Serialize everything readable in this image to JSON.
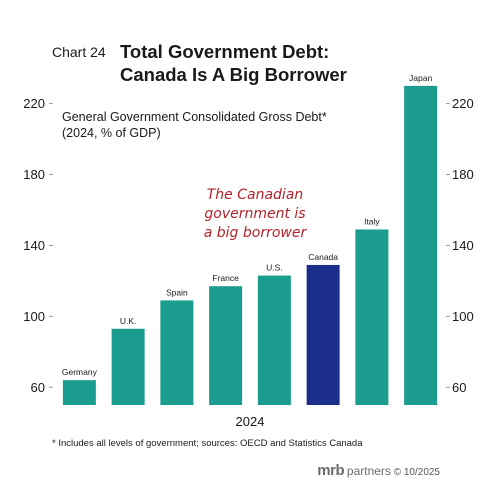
{
  "header": {
    "chart_number": "Chart 24",
    "title_line1": "Total Government Debt:",
    "title_line2": "Canada Is A Big Borrower"
  },
  "footnote": "* Includes all levels of government; sources: OECD and Statistics Canada",
  "brand": {
    "logo": "mrb",
    "logo_sub": "partners",
    "copyright": "© 10/2025"
  },
  "annotation": {
    "line1": "The Canadian",
    "line2": "government is",
    "line3": "a big borrower"
  },
  "colors": {
    "bar": "#1a9c8f",
    "highlight": "#1b2e8a",
    "annotation": "#b0232a"
  },
  "chart_data": {
    "type": "bar",
    "title": "General Government Consolidated Gross Debt*",
    "subtitle": "(2024, % of GDP)",
    "xlabel": "2024",
    "ylabel": "",
    "categories": [
      "Germany",
      "U.K.",
      "Spain",
      "France",
      "U.S.",
      "Canada",
      "Italy",
      "Japan"
    ],
    "values": [
      64,
      93,
      109,
      117,
      123,
      129,
      149,
      230
    ],
    "highlight": "Canada",
    "ylim": [
      50,
      235
    ],
    "yticks": [
      60,
      100,
      140,
      180,
      220
    ],
    "y_axis_both_sides": true,
    "grid": false
  }
}
